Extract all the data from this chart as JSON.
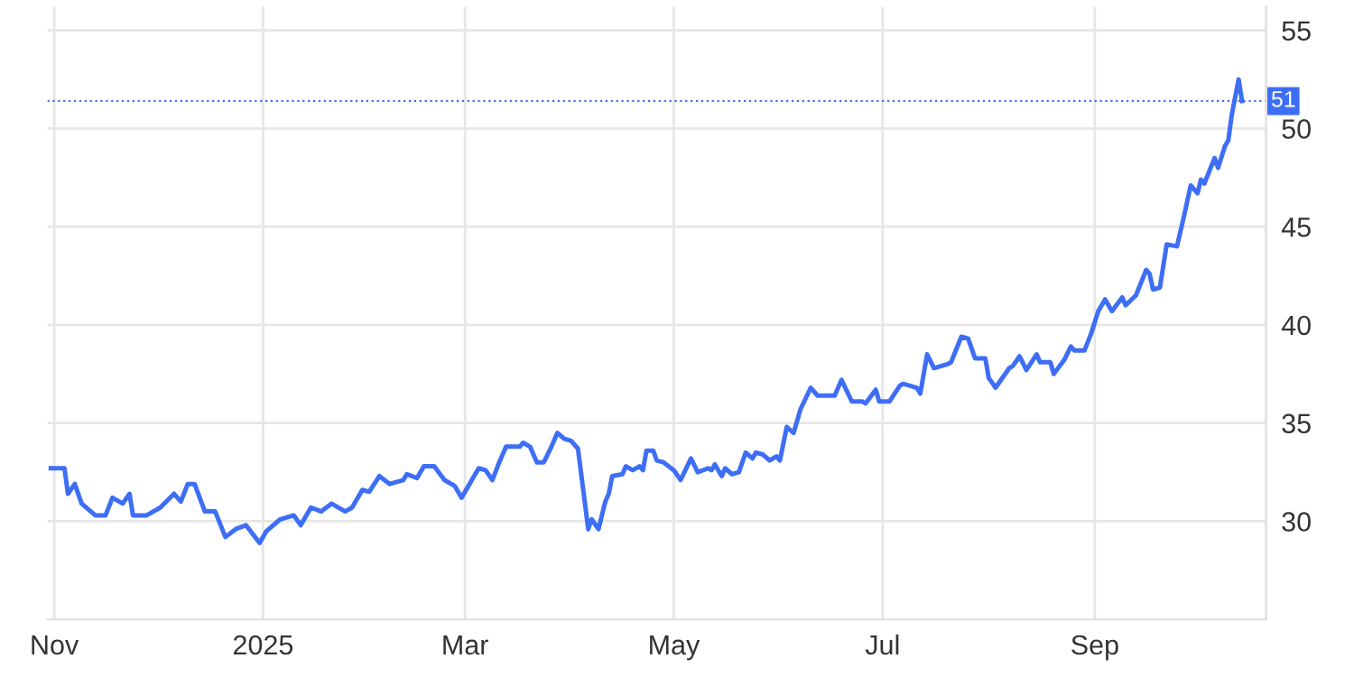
{
  "chart_data": {
    "type": "line",
    "x": [
      "2024-10-31",
      "2024-11-04",
      "2024-11-05",
      "2024-11-07",
      "2024-11-09",
      "2024-11-13",
      "2024-11-16",
      "2024-11-18",
      "2024-11-21",
      "2024-11-23",
      "2024-11-24",
      "2024-11-28",
      "2024-12-02",
      "2024-12-06",
      "2024-12-08",
      "2024-12-10",
      "2024-12-12",
      "2024-12-15",
      "2024-12-18",
      "2024-12-21",
      "2024-12-24",
      "2024-12-27",
      "2024-12-31",
      "2025-01-02",
      "2025-01-06",
      "2025-01-10",
      "2025-01-12",
      "2025-01-15",
      "2025-01-18",
      "2025-01-21",
      "2025-01-25",
      "2025-01-27",
      "2025-01-30",
      "2025-02-01",
      "2025-02-04",
      "2025-02-07",
      "2025-02-11",
      "2025-02-12",
      "2025-02-15",
      "2025-02-17",
      "2025-02-20",
      "2025-02-23",
      "2025-02-26",
      "2025-02-28",
      "2025-03-03",
      "2025-03-05",
      "2025-03-07",
      "2025-03-09",
      "2025-03-11",
      "2025-03-13",
      "2025-03-17",
      "2025-03-18",
      "2025-03-20",
      "2025-03-22",
      "2025-03-24",
      "2025-03-26",
      "2025-03-28",
      "2025-03-30",
      "2025-04-01",
      "2025-04-03",
      "2025-04-06",
      "2025-04-07",
      "2025-04-09",
      "2025-04-11",
      "2025-04-12",
      "2025-04-13",
      "2025-04-16",
      "2025-04-17",
      "2025-04-19",
      "2025-04-21",
      "2025-04-22",
      "2025-04-23",
      "2025-04-25",
      "2025-04-26",
      "2025-04-28",
      "2025-05-01",
      "2025-05-03",
      "2025-05-06",
      "2025-05-08",
      "2025-05-11",
      "2025-05-12",
      "2025-05-13",
      "2025-05-15",
      "2025-05-16",
      "2025-05-18",
      "2025-05-20",
      "2025-05-22",
      "2025-05-24",
      "2025-05-25",
      "2025-05-27",
      "2025-05-29",
      "2025-05-31",
      "2025-06-01",
      "2025-06-03",
      "2025-06-05",
      "2025-06-07",
      "2025-06-10",
      "2025-06-12",
      "2025-06-17",
      "2025-06-19",
      "2025-06-22",
      "2025-06-25",
      "2025-06-26",
      "2025-06-29",
      "2025-06-30",
      "2025-07-03",
      "2025-07-06",
      "2025-07-07",
      "2025-07-11",
      "2025-07-12",
      "2025-07-14",
      "2025-07-16",
      "2025-07-20",
      "2025-07-21",
      "2025-07-24",
      "2025-07-26",
      "2025-07-28",
      "2025-07-31",
      "2025-08-01",
      "2025-08-03",
      "2025-08-07",
      "2025-08-08",
      "2025-08-10",
      "2025-08-12",
      "2025-08-15",
      "2025-08-16",
      "2025-08-19",
      "2025-08-20",
      "2025-08-23",
      "2025-08-25",
      "2025-08-26",
      "2025-08-29",
      "2025-08-31",
      "2025-09-02",
      "2025-09-04",
      "2025-09-06",
      "2025-09-09",
      "2025-09-10",
      "2025-09-13",
      "2025-09-16",
      "2025-09-17",
      "2025-09-18",
      "2025-09-20",
      "2025-09-22",
      "2025-09-25",
      "2025-09-27",
      "2025-09-29",
      "2025-10-01",
      "2025-10-02",
      "2025-10-03",
      "2025-10-06",
      "2025-10-07",
      "2025-10-09",
      "2025-10-10",
      "2025-10-11",
      "2025-10-13",
      "2025-10-14"
    ],
    "series": [
      {
        "color": "#3d6ef5",
        "values": [
          32.7,
          32.7,
          31.4,
          31.9,
          30.9,
          30.3,
          30.3,
          31.2,
          30.9,
          31.4,
          30.3,
          30.3,
          30.7,
          31.4,
          31.0,
          31.9,
          31.9,
          30.5,
          30.5,
          29.2,
          29.6,
          29.8,
          28.9,
          29.5,
          30.1,
          30.3,
          29.8,
          30.7,
          30.5,
          30.9,
          30.5,
          30.7,
          31.6,
          31.5,
          32.3,
          31.9,
          32.1,
          32.4,
          32.2,
          32.8,
          32.8,
          32.1,
          31.8,
          31.2,
          32.1,
          32.7,
          32.6,
          32.1,
          33.0,
          33.8,
          33.8,
          34.0,
          33.8,
          33.0,
          33.0,
          33.7,
          34.5,
          34.2,
          34.1,
          33.7,
          29.6,
          30.1,
          29.6,
          31.0,
          31.4,
          32.3,
          32.4,
          32.8,
          32.6,
          32.8,
          32.6,
          33.6,
          33.6,
          33.1,
          33.0,
          32.6,
          32.1,
          33.2,
          32.5,
          32.7,
          32.6,
          32.9,
          32.3,
          32.7,
          32.4,
          32.5,
          33.5,
          33.2,
          33.5,
          33.4,
          33.1,
          33.3,
          33.1,
          34.8,
          34.5,
          35.7,
          36.8,
          36.4,
          36.4,
          37.2,
          36.1,
          36.1,
          36.0,
          36.7,
          36.1,
          36.1,
          36.9,
          37.0,
          36.8,
          36.5,
          38.5,
          37.8,
          38.0,
          38.1,
          39.4,
          39.3,
          38.3,
          38.3,
          37.3,
          36.8,
          37.8,
          37.9,
          38.4,
          37.7,
          38.5,
          38.1,
          38.1,
          37.5,
          38.2,
          38.9,
          38.7,
          38.7,
          39.6,
          40.7,
          41.3,
          40.7,
          41.4,
          41.0,
          41.5,
          42.8,
          42.6,
          41.8,
          41.9,
          44.1,
          44.0,
          45.5,
          47.1,
          46.7,
          47.4,
          47.2,
          48.5,
          48.0,
          49.1,
          49.4,
          50.7,
          52.5,
          51.4
        ]
      }
    ],
    "xlim": [
      "2024-10-30",
      "2025-10-21"
    ],
    "xticks": [
      {
        "value": "2024-11-01",
        "label": "Nov"
      },
      {
        "value": "2025-01-01",
        "label": "2025"
      },
      {
        "value": "2025-03-01",
        "label": "Mar"
      },
      {
        "value": "2025-05-01",
        "label": "May"
      },
      {
        "value": "2025-07-01",
        "label": "Jul"
      },
      {
        "value": "2025-09-01",
        "label": "Sep"
      }
    ],
    "ylim": [
      25,
      56.2
    ],
    "yticks": [
      30,
      35,
      40,
      45,
      50,
      55
    ],
    "ref_lines": [
      {
        "axis": "y",
        "value": 51.4,
        "label": "51",
        "color": "#3d6ef5",
        "line_style": "dotted"
      }
    ],
    "grid": true
  }
}
